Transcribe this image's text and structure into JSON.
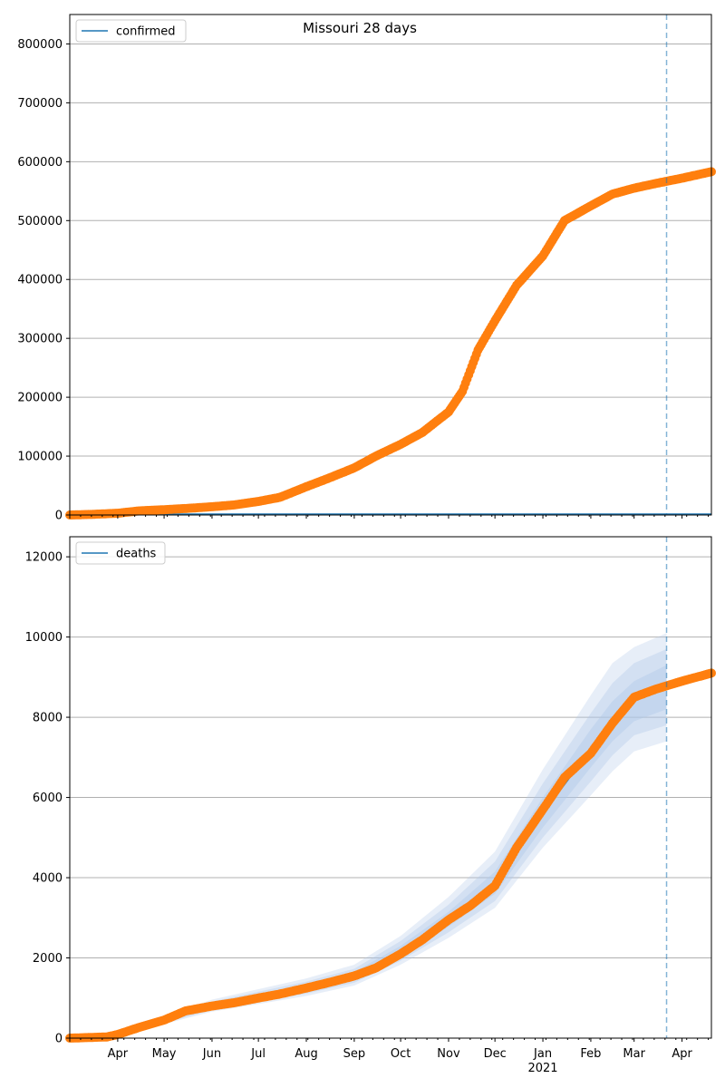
{
  "colors": {
    "observed": "#ff7f0e",
    "model": "#1f77b4",
    "band": "#aec7e8",
    "grid": "#b0b0b0",
    "axis": "#000000"
  },
  "chart_data": [
    {
      "type": "scatter",
      "title": "Missouri 28 days",
      "xlabel": "",
      "ylabel": "",
      "legend": {
        "placement": "upper-left",
        "entries": [
          "confirmed"
        ]
      },
      "grid": "horizontal",
      "ylim": [
        0,
        850000
      ],
      "yticks": [
        0,
        100000,
        200000,
        300000,
        400000,
        500000,
        600000,
        700000,
        800000
      ],
      "ytick_labels": [
        "0",
        "100000",
        "200000",
        "300000",
        "400000",
        "500000",
        "600000",
        "700000",
        "800000"
      ],
      "xlim": [
        "2020-03-01",
        "2021-04-20"
      ],
      "forecast_start": "2021-03-22",
      "series": [
        {
          "name": "confirmed",
          "kind": "model-line",
          "x": [
            "2020-03-01",
            "2021-04-20"
          ],
          "values": [
            0,
            0
          ]
        },
        {
          "kind": "observed",
          "x": [
            "2020-03-01",
            "2020-03-15",
            "2020-04-01",
            "2020-04-15",
            "2020-05-01",
            "2020-05-15",
            "2020-06-01",
            "2020-06-15",
            "2020-07-01",
            "2020-07-15",
            "2020-08-01",
            "2020-08-15",
            "2020-09-01",
            "2020-09-15",
            "2020-10-01",
            "2020-10-15",
            "2020-11-01",
            "2020-11-10",
            "2020-11-20",
            "2020-12-01",
            "2020-12-15",
            "2021-01-01",
            "2021-01-15",
            "2021-02-01",
            "2021-02-15",
            "2021-03-01",
            "2021-03-15",
            "2021-04-01",
            "2021-04-20"
          ],
          "values": [
            0,
            1000,
            3000,
            7000,
            9000,
            11000,
            14000,
            17000,
            23000,
            30000,
            48000,
            62000,
            80000,
            100000,
            120000,
            140000,
            175000,
            210000,
            280000,
            330000,
            390000,
            440000,
            500000,
            525000,
            545000,
            555000,
            563000,
            572000,
            583000
          ]
        }
      ]
    },
    {
      "type": "scatter",
      "title": "",
      "xlabel": "",
      "ylabel": "",
      "legend": {
        "placement": "upper-left",
        "entries": [
          "deaths"
        ]
      },
      "grid": "horizontal",
      "ylim": [
        0,
        12500
      ],
      "yticks": [
        0,
        2000,
        4000,
        6000,
        8000,
        10000,
        12000
      ],
      "ytick_labels": [
        "0",
        "2000",
        "4000",
        "6000",
        "8000",
        "10000",
        "12000"
      ],
      "xlim": [
        "2020-03-01",
        "2021-04-20"
      ],
      "xticks": [
        "2020-04-01",
        "2020-05-01",
        "2020-06-01",
        "2020-07-01",
        "2020-08-01",
        "2020-09-01",
        "2020-10-01",
        "2020-11-01",
        "2020-12-01",
        "2021-01-01",
        "2021-02-01",
        "2021-03-01",
        "2021-04-01"
      ],
      "xtick_labels": [
        "Apr",
        "May",
        "Jun",
        "Jul",
        "Aug",
        "Sep",
        "Oct",
        "Nov",
        "Dec",
        "Jan",
        "Feb",
        "Mar",
        "Apr"
      ],
      "xtick_year_label": "2021",
      "forecast_start": "2021-03-22",
      "series": [
        {
          "kind": "observed",
          "x": [
            "2020-03-01",
            "2020-03-25",
            "2020-04-01",
            "2020-04-15",
            "2020-05-01",
            "2020-05-15",
            "2020-06-01",
            "2020-06-15",
            "2020-07-01",
            "2020-07-15",
            "2020-08-01",
            "2020-08-15",
            "2020-09-01",
            "2020-09-15",
            "2020-10-01",
            "2020-10-15",
            "2020-11-01",
            "2020-11-15",
            "2020-12-01",
            "2020-12-15",
            "2021-01-01",
            "2021-01-15",
            "2021-02-01",
            "2021-02-15",
            "2021-03-01",
            "2021-03-15",
            "2021-04-01",
            "2021-04-20"
          ],
          "values": [
            0,
            30,
            90,
            270,
            450,
            680,
            800,
            880,
            1000,
            1100,
            1250,
            1380,
            1550,
            1750,
            2100,
            2450,
            2950,
            3300,
            3800,
            4750,
            5700,
            6500,
            7100,
            7850,
            8500,
            8700,
            8900,
            9100
          ]
        },
        {
          "name": "deaths",
          "kind": "model-band",
          "x": [
            "2020-04-01",
            "2020-05-01",
            "2020-06-01",
            "2020-07-01",
            "2020-08-01",
            "2020-09-01",
            "2020-10-01",
            "2020-11-01",
            "2020-12-01",
            "2021-01-01",
            "2021-02-01",
            "2021-02-15",
            "2021-03-01",
            "2021-03-22"
          ],
          "median": [
            90,
            450,
            800,
            1020,
            1250,
            1540,
            2150,
            2950,
            3850,
            5600,
            7200,
            7900,
            8400,
            8750
          ],
          "band_50": [
            [
              80,
              100
            ],
            [
              410,
              490
            ],
            [
              740,
              860
            ],
            [
              950,
              1100
            ],
            [
              1170,
              1340
            ],
            [
              1450,
              1650
            ],
            [
              2020,
              2300
            ],
            [
              2780,
              3150
            ],
            [
              3600,
              4150
            ],
            [
              5250,
              6000
            ],
            [
              6750,
              7700
            ],
            [
              7400,
              8400
            ],
            [
              7900,
              8900
            ],
            [
              8200,
              9300
            ]
          ],
          "band_80": [
            [
              75,
              105
            ],
            [
              380,
              520
            ],
            [
              700,
              910
            ],
            [
              900,
              1160
            ],
            [
              1110,
              1410
            ],
            [
              1380,
              1730
            ],
            [
              1930,
              2420
            ],
            [
              2640,
              3330
            ],
            [
              3420,
              4400
            ],
            [
              5000,
              6350
            ],
            [
              6400,
              8100
            ],
            [
              7050,
              8850
            ],
            [
              7550,
              9350
            ],
            [
              7800,
              9700
            ]
          ],
          "band_95": [
            [
              70,
              110
            ],
            [
              350,
              560
            ],
            [
              660,
              960
            ],
            [
              850,
              1220
            ],
            [
              1050,
              1490
            ],
            [
              1310,
              1830
            ],
            [
              1830,
              2550
            ],
            [
              2500,
              3520
            ],
            [
              3250,
              4650
            ],
            [
              4750,
              6700
            ],
            [
              6050,
              8550
            ],
            [
              6650,
              9350
            ],
            [
              7150,
              9750
            ],
            [
              7400,
              10100
            ]
          ]
        }
      ]
    }
  ]
}
